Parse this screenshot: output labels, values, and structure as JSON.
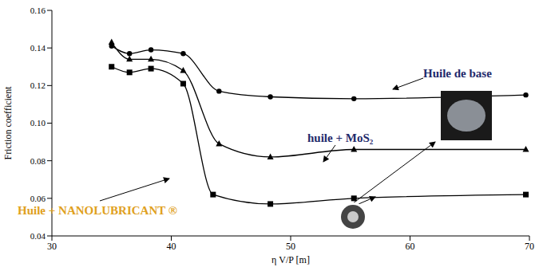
{
  "chart_data": {
    "type": "line",
    "x_label": "η V/P [m]",
    "y_label": "Friction coefficient",
    "xlim": [
      30,
      70
    ],
    "xticks": [
      30,
      40,
      50,
      60,
      70
    ],
    "ylim": [
      0.04,
      0.16
    ],
    "yticks": [
      0.04,
      0.06,
      0.08,
      {
        "value": 0.1,
        "label": "0.10"
      },
      0.12,
      0.14,
      0.16
    ],
    "grid": false,
    "series": [
      {
        "name": "Huile de base",
        "color": "#000000",
        "marker": "circle",
        "x": [
          35,
          36.5,
          38.3,
          41,
          44,
          48.3,
          55.3,
          69.7
        ],
        "values": [
          0.141,
          0.137,
          0.139,
          0.137,
          0.117,
          0.114,
          0.113,
          0.115
        ]
      },
      {
        "name": "huile + MoS₂",
        "color": "#000000",
        "marker": "triangle",
        "x": [
          35,
          36.5,
          38.3,
          41,
          44,
          48.3,
          55.3,
          69.7
        ],
        "values": [
          0.143,
          0.134,
          0.134,
          0.128,
          0.089,
          0.082,
          0.086,
          0.086
        ]
      },
      {
        "name": "Huile + NANOLUBRICANT ®",
        "color": "#000000",
        "marker": "square",
        "x": [
          35,
          36.5,
          38.3,
          41,
          43.5,
          48.3,
          55.3,
          69.7
        ],
        "values": [
          0.13,
          0.127,
          0.129,
          0.121,
          0.062,
          0.057,
          0.06,
          0.062
        ]
      }
    ]
  }
}
